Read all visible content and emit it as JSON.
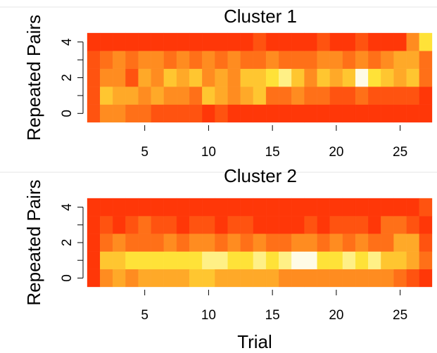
{
  "chart_data": [
    {
      "type": "heatmap",
      "title": "Cluster 1",
      "ylabel": "Repeated Pairs",
      "x": [
        1,
        2,
        3,
        4,
        5,
        6,
        7,
        8,
        9,
        10,
        11,
        12,
        13,
        14,
        15,
        16,
        17,
        18,
        19,
        20,
        21,
        22,
        23,
        24,
        25,
        26,
        27
      ],
      "y": [
        0,
        1,
        2,
        3,
        4
      ],
      "values": [
        [
          2,
          4,
          4,
          3,
          3,
          2,
          2,
          2,
          2,
          1,
          2,
          1,
          1,
          1,
          1,
          1,
          1,
          1,
          1,
          1,
          1,
          1,
          1,
          1,
          1,
          1,
          1
        ],
        [
          2,
          6,
          5,
          5,
          4,
          5,
          4,
          4,
          3,
          6,
          5,
          4,
          5,
          6,
          3,
          3,
          4,
          3,
          3,
          2,
          2,
          3,
          2,
          2,
          2,
          2,
          1
        ],
        [
          2,
          4,
          4,
          2,
          5,
          4,
          6,
          5,
          6,
          4,
          5,
          4,
          6,
          6,
          7,
          8,
          6,
          4,
          6,
          5,
          6,
          9,
          7,
          6,
          5,
          6,
          3
        ],
        [
          2,
          3,
          4,
          3,
          4,
          4,
          3,
          4,
          3,
          4,
          3,
          4,
          3,
          3,
          4,
          3,
          3,
          3,
          4,
          4,
          3,
          4,
          3,
          4,
          5,
          5,
          3
        ],
        [
          1,
          1,
          1,
          1,
          1,
          1,
          1,
          1,
          1,
          1,
          1,
          1,
          1,
          2,
          1,
          1,
          1,
          1,
          2,
          1,
          1,
          2,
          1,
          1,
          1,
          4,
          7
        ]
      ],
      "zlim": [
        0,
        9
      ],
      "colors": [
        "#ff1a00",
        "#ffe83a",
        "#fffbe6"
      ],
      "xlim": [
        0.5,
        27.5
      ],
      "ylim": [
        -0.5,
        4.5
      ],
      "xticks": [
        5,
        10,
        15,
        20,
        25
      ],
      "yticks": [
        0,
        2,
        4
      ],
      "minor_yticks": [
        1,
        3
      ]
    },
    {
      "type": "heatmap",
      "title": "Cluster 2",
      "ylabel": "Repeated Pairs",
      "xlabel": "Trial",
      "x": [
        1,
        2,
        3,
        4,
        5,
        6,
        7,
        8,
        9,
        10,
        11,
        12,
        13,
        14,
        15,
        16,
        17,
        18,
        19,
        20,
        21,
        22,
        23,
        24,
        25,
        26,
        27
      ],
      "y": [
        0,
        1,
        2,
        3,
        4
      ],
      "values": [
        [
          1,
          4,
          5,
          4,
          5,
          5,
          5,
          5,
          6,
          6,
          5,
          5,
          5,
          5,
          5,
          4,
          4,
          4,
          4,
          4,
          4,
          4,
          4,
          4,
          3,
          2,
          1
        ],
        [
          1,
          6,
          6,
          7,
          7,
          7,
          7,
          7,
          7,
          8,
          8,
          7,
          7,
          8,
          7,
          8,
          9,
          9,
          7,
          7,
          8,
          7,
          8,
          6,
          6,
          5,
          3
        ],
        [
          1,
          3,
          4,
          3,
          3,
          3,
          4,
          3,
          4,
          4,
          3,
          4,
          3,
          4,
          3,
          3,
          4,
          4,
          3,
          4,
          3,
          4,
          3,
          3,
          5,
          5,
          2
        ],
        [
          1,
          2,
          1,
          2,
          3,
          2,
          2,
          1,
          2,
          2,
          1,
          2,
          2,
          1,
          1,
          1,
          1,
          2,
          1,
          2,
          2,
          2,
          1,
          3,
          3,
          2,
          1
        ],
        [
          1,
          1,
          1,
          1,
          1,
          1,
          1,
          1,
          1,
          1,
          1,
          1,
          1,
          1,
          1,
          1,
          1,
          1,
          1,
          1,
          1,
          1,
          1,
          1,
          1,
          1,
          2
        ]
      ],
      "zlim": [
        0,
        9
      ],
      "colors": [
        "#ff1a00",
        "#ffe83a",
        "#fffbe6"
      ],
      "xlim": [
        0.5,
        27.5
      ],
      "ylim": [
        -0.5,
        4.5
      ],
      "xticks": [
        5,
        10,
        15,
        20,
        25
      ],
      "yticks": [
        0,
        2,
        4
      ],
      "minor_yticks": [
        1,
        3
      ]
    }
  ]
}
